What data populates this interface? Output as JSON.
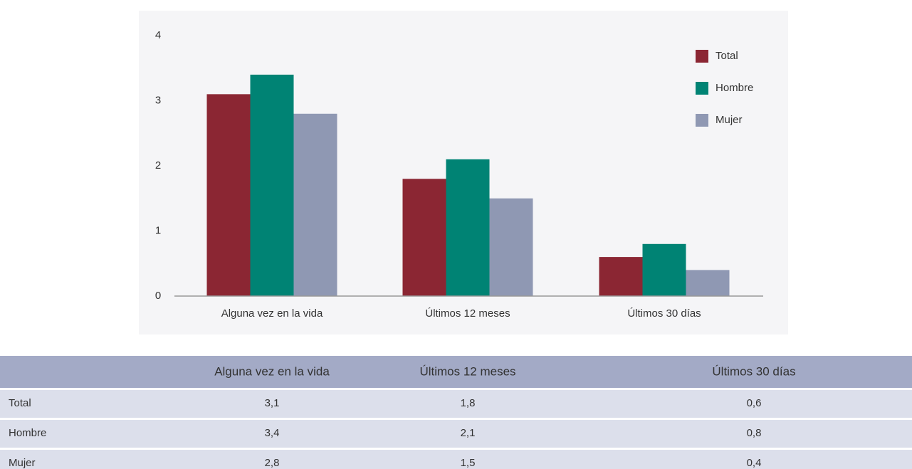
{
  "chart_data": {
    "type": "bar",
    "categories": [
      "Alguna vez en la vida",
      "Últimos 12 meses",
      "Últimos 30 días"
    ],
    "series": [
      {
        "name": "Total",
        "color": "#8b2633",
        "values": [
          3.1,
          1.8,
          0.6
        ]
      },
      {
        "name": "Hombre",
        "color": "#008374",
        "values": [
          3.4,
          2.1,
          0.8
        ]
      },
      {
        "name": "Mujer",
        "color": "#8f98b3",
        "values": [
          2.8,
          1.5,
          0.4
        ]
      }
    ],
    "ylim": [
      0,
      4
    ],
    "yticks": [
      0,
      1,
      2,
      3,
      4
    ],
    "grid": false,
    "legend": "top-right"
  },
  "table": {
    "header": [
      "Alguna vez en la vida",
      "Últimos 12 meses",
      "Últimos 30 días"
    ],
    "rows": [
      [
        "Total",
        "3,1",
        "1,8",
        "0,6"
      ],
      [
        "Hombre",
        "3,4",
        "2,1",
        "0,8"
      ],
      [
        "Mujer",
        "2,8",
        "1,5",
        "0,4"
      ]
    ]
  }
}
